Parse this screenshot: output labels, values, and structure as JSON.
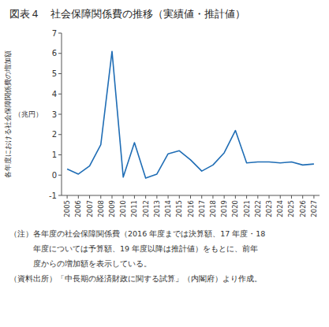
{
  "chart_data": {
    "type": "line",
    "title": "図表４　社会保障関係費の推移（実績値・推計値）",
    "ylabel": "各年度における社会保障関係費の増加額",
    "ylabel_unit": "（兆円）",
    "x": [
      2005,
      2006,
      2007,
      2008,
      2009,
      2010,
      2011,
      2012,
      2013,
      2014,
      2015,
      2016,
      2017,
      2018,
      2019,
      2020,
      2021,
      2022,
      2023,
      2024,
      2025,
      2026,
      2027
    ],
    "values": [
      0.3,
      0.05,
      0.45,
      1.5,
      6.1,
      -0.1,
      1.6,
      -0.15,
      0.05,
      1.05,
      1.2,
      0.75,
      0.2,
      0.5,
      1.1,
      2.2,
      0.6,
      0.65,
      0.65,
      0.6,
      0.65,
      0.5,
      0.55
    ],
    "color": "#1f6db5",
    "xlim": [
      2004.5,
      2027.5
    ],
    "xticks": [
      2005,
      2006,
      2007,
      2008,
      2009,
      2010,
      2011,
      2012,
      2013,
      2014,
      2015,
      2016,
      2017,
      2018,
      2019,
      2020,
      2021,
      2022,
      2023,
      2024,
      2025,
      2026,
      2027
    ],
    "ylim": [
      -1,
      7
    ],
    "yticks": [
      -1,
      0,
      1,
      2,
      3,
      4,
      5,
      6,
      7
    ],
    "grid": false,
    "notes": [
      "（注）各年度の社会保障関係費（2016 年度までは決算額、17 年度・18",
      "　　　年度については予算額、19 年度以降は推計値）をもとに、前年",
      "　　　度からの増加額を表示している。",
      "（資料出所）「中長期の経済財政に関する試算」（内閣府）より作成。"
    ]
  }
}
